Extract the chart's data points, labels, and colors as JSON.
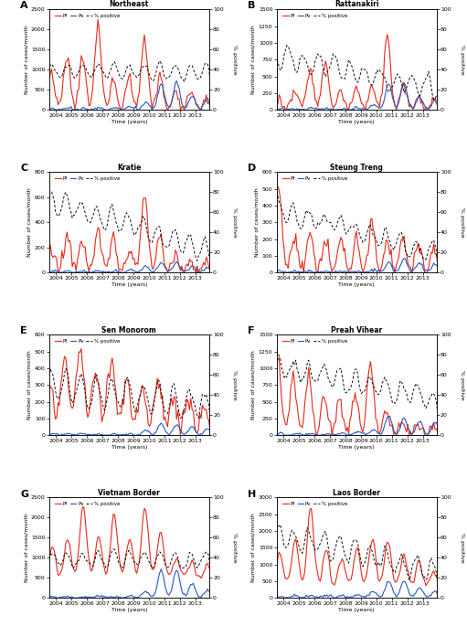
{
  "panels": [
    {
      "label": "A",
      "title": "Northeast",
      "ylim_left": [
        0,
        2500
      ],
      "ylim_right": [
        0,
        100
      ],
      "yticks_left": [
        0,
        500,
        1000,
        1500,
        2000,
        2500
      ],
      "yticks_right": [
        0,
        20,
        40,
        60,
        80,
        100
      ]
    },
    {
      "label": "B",
      "title": "Rattanakiri",
      "ylim_left": [
        0,
        1500
      ],
      "ylim_right": [
        0,
        100
      ],
      "yticks_left": [
        0,
        250,
        500,
        750,
        1000,
        1250,
        1500
      ],
      "yticks_right": [
        0,
        20,
        40,
        60,
        80,
        100
      ]
    },
    {
      "label": "C",
      "title": "Kratie",
      "ylim_left": [
        0,
        800
      ],
      "ylim_right": [
        0,
        100
      ],
      "yticks_left": [
        0,
        200,
        400,
        600,
        800
      ],
      "yticks_right": [
        0,
        20,
        40,
        60,
        80,
        100
      ]
    },
    {
      "label": "D",
      "title": "Steung Treng",
      "ylim_left": [
        0,
        600
      ],
      "ylim_right": [
        0,
        100
      ],
      "yticks_left": [
        0,
        100,
        200,
        300,
        400,
        500,
        600
      ],
      "yticks_right": [
        0,
        20,
        40,
        60,
        80,
        100
      ]
    },
    {
      "label": "E",
      "title": "Sen Monorom",
      "ylim_left": [
        0,
        600
      ],
      "ylim_right": [
        0,
        100
      ],
      "yticks_left": [
        0,
        100,
        200,
        300,
        400,
        500,
        600
      ],
      "yticks_right": [
        0,
        20,
        40,
        60,
        80,
        100
      ]
    },
    {
      "label": "F",
      "title": "Preah Vihear",
      "ylim_left": [
        0,
        1500
      ],
      "ylim_right": [
        0,
        100
      ],
      "yticks_left": [
        0,
        250,
        500,
        750,
        1000,
        1250,
        1500
      ],
      "yticks_right": [
        0,
        20,
        40,
        60,
        80,
        100
      ]
    },
    {
      "label": "G",
      "title": "Vietnam Border",
      "ylim_left": [
        0,
        2500
      ],
      "ylim_right": [
        0,
        100
      ],
      "yticks_left": [
        0,
        500,
        1000,
        1500,
        2000,
        2500
      ],
      "yticks_right": [
        0,
        20,
        40,
        60,
        80,
        100
      ]
    },
    {
      "label": "H",
      "title": "Laos Border",
      "ylim_left": [
        0,
        3000
      ],
      "ylim_right": [
        0,
        100
      ],
      "yticks_left": [
        0,
        500,
        1000,
        1500,
        2000,
        2500,
        3000
      ],
      "yticks_right": [
        0,
        20,
        40,
        60,
        80,
        100
      ]
    }
  ],
  "color_pf": "#e8281a",
  "color_pv": "#2457c5",
  "color_pct": "#111111",
  "xlabel": "Time (years)",
  "ylabel_left": "Number of cases/month",
  "ylabel_right": "% positive",
  "xtick_years": [
    2004,
    2005,
    2006,
    2007,
    2008,
    2009,
    2010,
    2011,
    2012,
    2013
  ],
  "legend_pf": "Pf",
  "legend_pv": "Pv",
  "legend_pct": "% positive"
}
